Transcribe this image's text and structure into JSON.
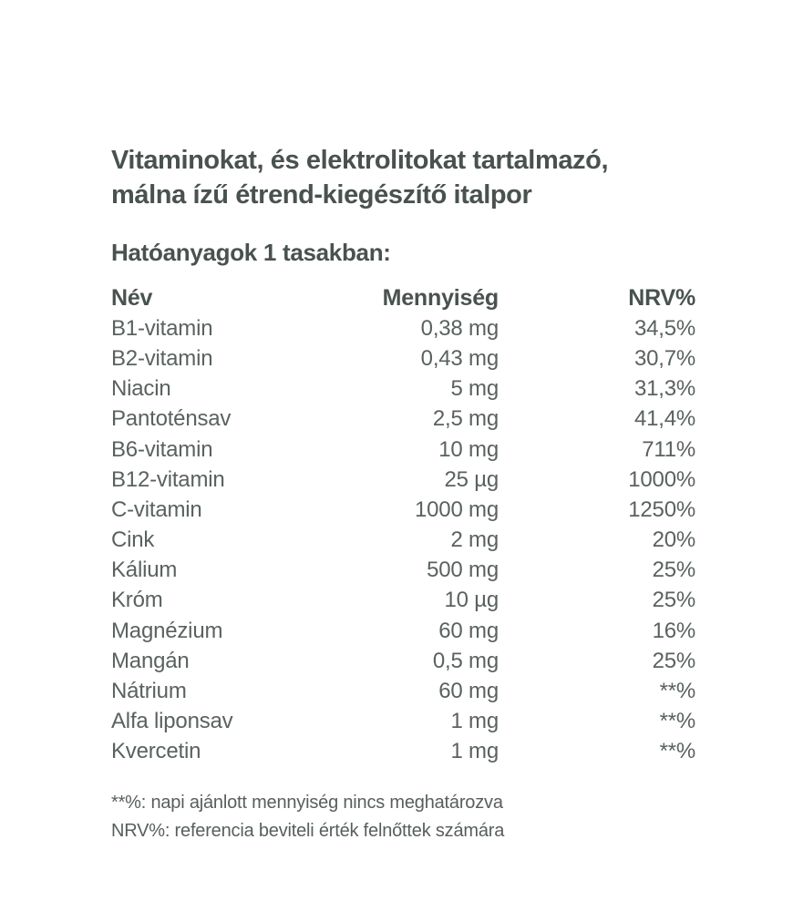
{
  "header": {
    "title_lines": [
      "Vitaminokat, és elektrolitokat tartalmazó,",
      "málna ízű étrend-kiegészítő italpor"
    ],
    "subtitle": "Hatóanyagok 1 tasakban:"
  },
  "table": {
    "headers": {
      "name": "Név",
      "quantity": "Mennyiség",
      "nrv": "NRV%"
    },
    "rows": [
      {
        "name": "B1-vitamin",
        "quantity": "0,38 mg",
        "nrv": "34,5%"
      },
      {
        "name": "B2-vitamin",
        "quantity": "0,43 mg",
        "nrv": "30,7%"
      },
      {
        "name": "Niacin",
        "quantity": "5 mg",
        "nrv": "31,3%"
      },
      {
        "name": "Pantoténsav",
        "quantity": "2,5 mg",
        "nrv": "41,4%"
      },
      {
        "name": "B6-vitamin",
        "quantity": "10 mg",
        "nrv": "711%"
      },
      {
        "name": "B12-vitamin",
        "quantity": "25 µg",
        "nrv": "1000%"
      },
      {
        "name": "C-vitamin",
        "quantity": "1000 mg",
        "nrv": "1250%"
      },
      {
        "name": "Cink",
        "quantity": "2 mg",
        "nrv": "20%"
      },
      {
        "name": "Kálium",
        "quantity": "500 mg",
        "nrv": "25%"
      },
      {
        "name": "Króm",
        "quantity": "10 µg",
        "nrv": "25%"
      },
      {
        "name": "Magnézium",
        "quantity": "60 mg",
        "nrv": "16%"
      },
      {
        "name": "Mangán",
        "quantity": "0,5 mg",
        "nrv": "25%"
      },
      {
        "name": "Nátrium",
        "quantity": "60 mg",
        "nrv": "**%"
      },
      {
        "name": "Alfa liponsav",
        "quantity": "1 mg",
        "nrv": "**%"
      },
      {
        "name": "Kvercetin",
        "quantity": "1 mg",
        "nrv": "**%"
      }
    ]
  },
  "footnotes": {
    "text": "**%: napi ajánlott mennyiség nincs meghatározva\nNRV%: referencia beviteli érték felnőttek számára",
    "line1": "**%: napi ajánlott mennyiség nincs meghatározva",
    "line2": "NRV%: referencia beviteli érték felnőttek számára"
  },
  "colors": {
    "background": "#ffffff",
    "heading_text": "#49524e",
    "body_text": "#5a625e"
  }
}
